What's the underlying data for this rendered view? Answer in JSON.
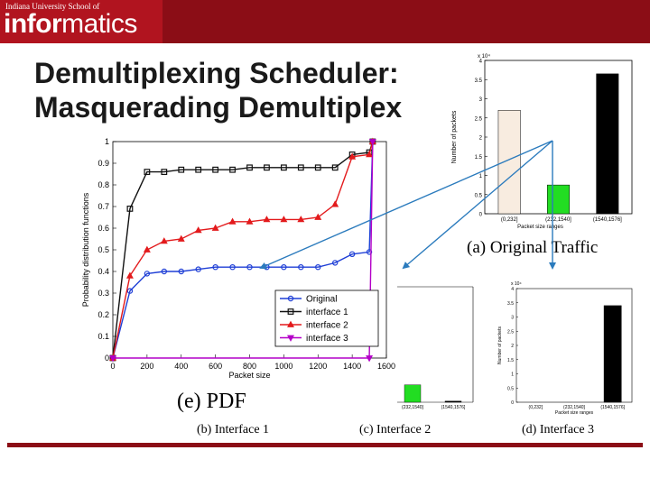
{
  "header": {
    "logo_small": "Indiana University School of",
    "logo_bold": "infor",
    "logo_regular": "matics"
  },
  "slide": {
    "title_line1": "Demultiplexing Scheduler:",
    "title_line2": "Masquerading Demultiplex"
  },
  "colors": {
    "banner": "#8b0d16",
    "original": "#1f3fd6",
    "interface1": "#111111",
    "interface2": "#e31a1c",
    "interface3": "#b400c8",
    "arrow": "#2b7bbd",
    "bar_beige": "#f8ece0",
    "bar_green": "#22dd22",
    "bar_black": "#000000"
  },
  "chart_data": [
    {
      "type": "line",
      "caption": "(e) PDF",
      "xlabel": "Packet size",
      "ylabel": "Probability distribution functions",
      "xlim": [
        0,
        1600
      ],
      "ylim": [
        0,
        1
      ],
      "xticks": [
        "0",
        "200",
        "400",
        "600",
        "800",
        "1000",
        "1200",
        "1400",
        "1600"
      ],
      "yticks": [
        "0",
        "0.1",
        "0.2",
        "0.3",
        "0.4",
        "0.5",
        "0.6",
        "0.7",
        "0.8",
        "0.9",
        "1"
      ],
      "legend_position": "lower-right",
      "series": [
        {
          "name": "Original",
          "color": "#1f3fd6",
          "marker": "circle",
          "x": [
            0,
            100,
            200,
            300,
            400,
            500,
            600,
            700,
            800,
            900,
            1000,
            1100,
            1200,
            1300,
            1400,
            1500,
            1520
          ],
          "y": [
            0,
            0.31,
            0.39,
            0.4,
            0.4,
            0.41,
            0.42,
            0.42,
            0.42,
            0.42,
            0.42,
            0.42,
            0.42,
            0.44,
            0.48,
            0.49,
            1.0
          ]
        },
        {
          "name": "interface 1",
          "color": "#111111",
          "marker": "square",
          "x": [
            0,
            100,
            200,
            300,
            400,
            500,
            600,
            700,
            800,
            900,
            1000,
            1100,
            1200,
            1300,
            1400,
            1500,
            1520
          ],
          "y": [
            0,
            0.69,
            0.86,
            0.86,
            0.87,
            0.87,
            0.87,
            0.87,
            0.88,
            0.88,
            0.88,
            0.88,
            0.88,
            0.88,
            0.94,
            0.95,
            1.0
          ]
        },
        {
          "name": "interface 2",
          "color": "#e31a1c",
          "marker": "triangle",
          "x": [
            0,
            100,
            200,
            300,
            400,
            500,
            600,
            700,
            800,
            900,
            1000,
            1100,
            1200,
            1300,
            1400,
            1500,
            1520
          ],
          "y": [
            0,
            0.38,
            0.5,
            0.54,
            0.55,
            0.59,
            0.6,
            0.63,
            0.63,
            0.64,
            0.64,
            0.64,
            0.65,
            0.71,
            0.93,
            0.94,
            1.0
          ]
        },
        {
          "name": "interface 3",
          "color": "#b400c8",
          "marker": "triangle-down",
          "x": [
            0,
            1500,
            1520
          ],
          "y": [
            0,
            0,
            1.0
          ]
        }
      ]
    },
    {
      "type": "bar",
      "caption": "(a) Original Traffic",
      "xlabel": "Packet size ranges",
      "ylabel": "Number of packets",
      "exponent": "x 10⁴",
      "categories": [
        "(0,232]",
        "(232,1540]",
        "(1540,1576]"
      ],
      "values": [
        2.7,
        0.75,
        3.65
      ],
      "colors": [
        "#f8ece0",
        "#22dd22",
        "#000000"
      ],
      "ylim": [
        0,
        4
      ],
      "yticks": [
        "0",
        "0.5",
        "1",
        "1.5",
        "2",
        "2.5",
        "3",
        "3.5",
        "4"
      ]
    },
    {
      "type": "bar",
      "caption": "(d) Interface 3",
      "xlabel": "Packet size ranges",
      "ylabel": "Number of packets",
      "exponent": "x 10⁴",
      "categories": [
        "(0,232]",
        "(232,1540]",
        "(1540,1576]"
      ],
      "values": [
        0,
        0,
        3.4
      ],
      "colors": [
        "#f8ece0",
        "#22dd22",
        "#000000"
      ],
      "ylim": [
        0,
        4
      ],
      "yticks": [
        "0",
        "0.5",
        "1",
        "1.5",
        "2",
        "2.5",
        "3",
        "3.5",
        "4"
      ]
    },
    {
      "type": "bar",
      "caption": "(c) Interface 2",
      "categories": [
        "(232,1540]",
        "(1540,1576]"
      ],
      "values": [
        0.6,
        0.04
      ],
      "colors": [
        "#22dd22",
        "#000000"
      ]
    },
    {
      "type": "bar",
      "caption": "(b) Interface 1"
    }
  ]
}
